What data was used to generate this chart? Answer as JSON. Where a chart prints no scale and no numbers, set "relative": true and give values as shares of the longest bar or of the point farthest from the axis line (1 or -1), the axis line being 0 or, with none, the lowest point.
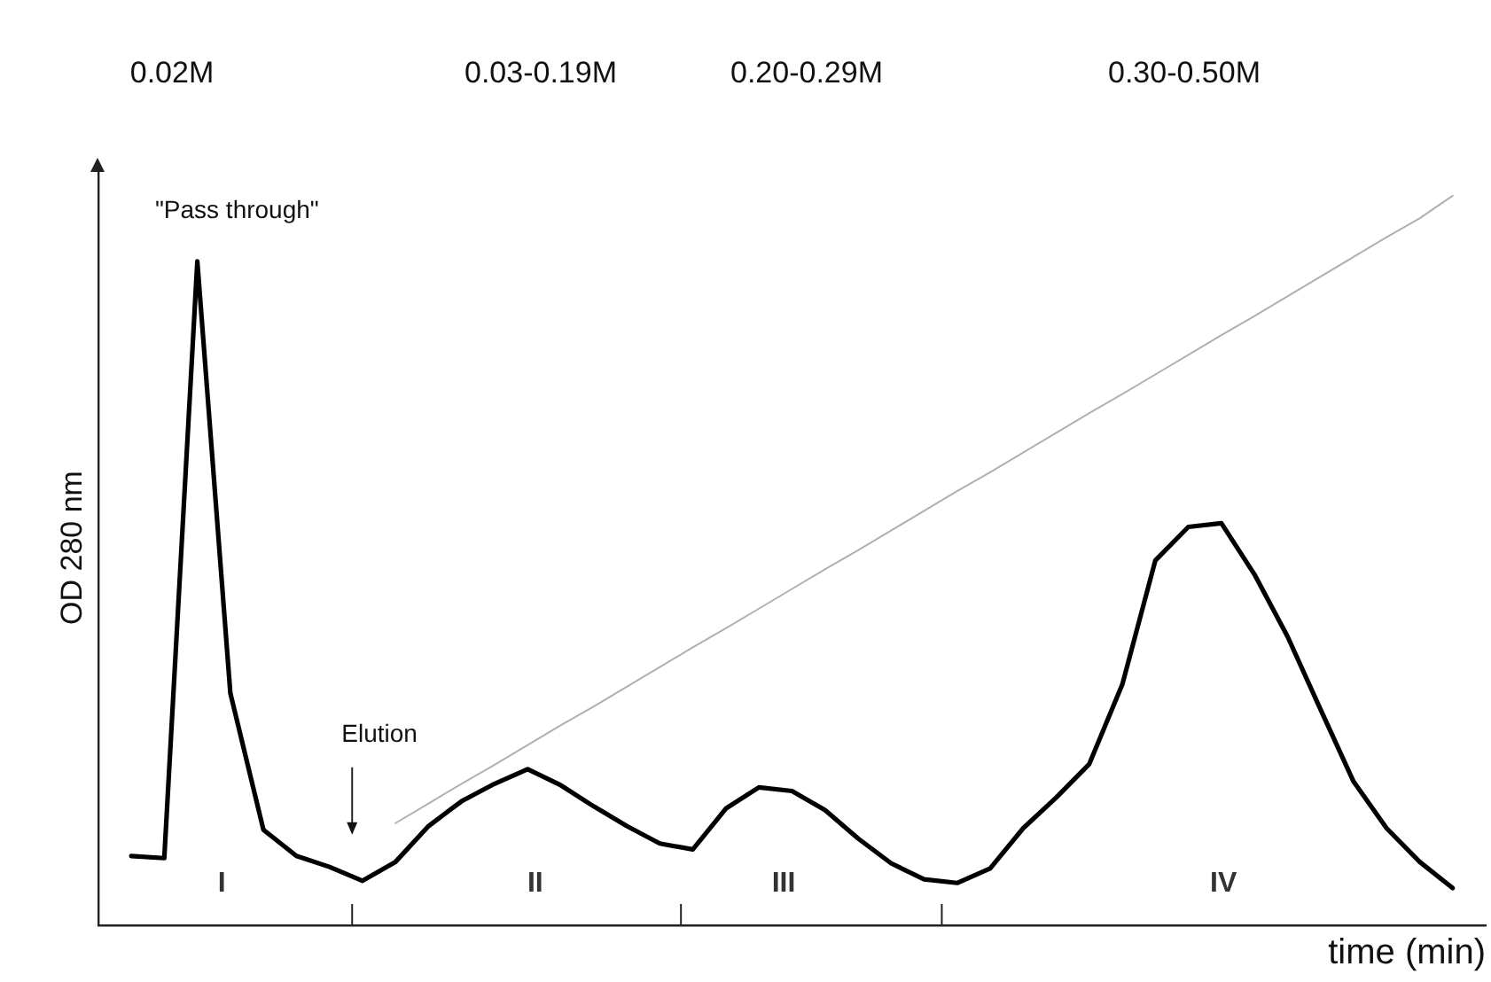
{
  "chart_data": {
    "type": "line",
    "relative": true,
    "xlabel": "time (min)",
    "ylabel": "OD 280 nm",
    "categories": [
      null,
      null,
      null,
      null,
      null,
      null,
      null,
      null,
      null,
      null,
      null,
      null,
      null,
      null,
      null,
      null,
      null,
      null,
      null,
      null,
      null,
      null,
      null,
      null,
      null,
      null,
      null,
      null,
      null,
      null,
      null,
      null,
      null,
      null,
      null,
      null,
      null,
      null,
      null,
      null,
      null,
      null,
      null
    ],
    "grid": false,
    "legend": false,
    "marker": "none",
    "line_style": "solid",
    "series": [
      {
        "color": "#000000",
        "values": [
          null,
          0.095,
          0.092,
          0.91,
          0.318,
          0.131,
          0.095,
          0.08,
          0.061,
          0.087,
          0.136,
          0.17,
          0.194,
          0.214,
          0.192,
          0.163,
          0.136,
          0.112,
          0.104,
          0.16,
          0.189,
          0.184,
          0.158,
          0.119,
          0.085,
          0.063,
          0.058,
          0.078,
          0.133,
          0.175,
          0.221,
          0.33,
          0.5,
          0.546,
          0.551,
          0.481,
          0.396,
          0.296,
          0.197,
          0.133,
          0.087,
          0.051,
          null
        ]
      },
      {
        "color": "#b0b0b0",
        "values": [
          null,
          null,
          null,
          null,
          null,
          null,
          null,
          null,
          null,
          0.14,
          0.167,
          0.194,
          0.22,
          0.247,
          0.274,
          0.3,
          0.327,
          0.354,
          0.381,
          0.407,
          0.434,
          0.461,
          0.488,
          0.514,
          0.541,
          0.568,
          0.595,
          0.621,
          0.648,
          0.675,
          0.702,
          0.728,
          0.755,
          0.782,
          0.809,
          0.835,
          0.862,
          0.889,
          0.916,
          0.943,
          0.969,
          1.0,
          null
        ]
      }
    ],
    "annotations": [
      "0.02M",
      "0.03-0.19M",
      "0.20-0.29M",
      "0.30-0.50M",
      "\"Pass through\"",
      "Elution",
      "I",
      "II",
      "III",
      "IV"
    ]
  }
}
